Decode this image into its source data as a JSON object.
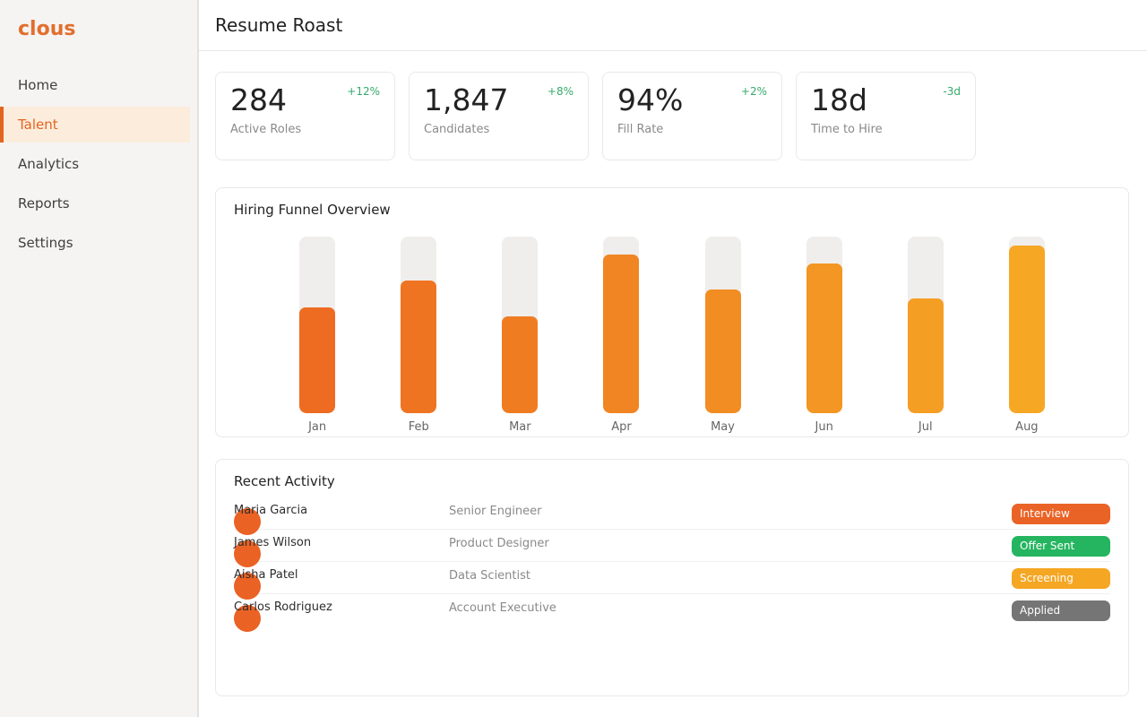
{
  "brand": {
    "logo_text": "clous",
    "accent_color": "#e2651f",
    "logo_color": "#e26e2e"
  },
  "sidebar": {
    "items": [
      {
        "label": "Home",
        "active": false
      },
      {
        "label": "Talent",
        "active": true
      },
      {
        "label": "Analytics",
        "active": false
      },
      {
        "label": "Reports",
        "active": false
      },
      {
        "label": "Settings",
        "active": false
      }
    ]
  },
  "header": {
    "title": "Resume Roast"
  },
  "stats": {
    "delta_color": "#35aa6b",
    "cards": [
      {
        "value": "284",
        "delta": "+12%",
        "label": "Active Roles"
      },
      {
        "value": "1,847",
        "delta": "+8%",
        "label": "Candidates"
      },
      {
        "value": "94%",
        "delta": "+2%",
        "label": "Fill Rate"
      },
      {
        "value": "18d",
        "delta": "-3d",
        "label": "Time to Hire"
      }
    ]
  },
  "chart_data": {
    "type": "bar",
    "title": "Hiring Funnel Overview",
    "categories": [
      "Jan",
      "Feb",
      "Mar",
      "Apr",
      "May",
      "Jun",
      "Jul",
      "Aug"
    ],
    "values": [
      60,
      75,
      55,
      90,
      70,
      85,
      65,
      95
    ],
    "value_unit": "percent of track height (no axis shown)",
    "ylim": [
      0,
      100
    ],
    "grid": false,
    "legend": "none",
    "track_color": "#f0eeec",
    "bar_colors": [
      "#ee6b22",
      "#ef7422",
      "#f07c22",
      "#f18523",
      "#f28d23",
      "#f39623",
      "#f59e24",
      "#f6a724"
    ]
  },
  "activity": {
    "title": "Recent Activity",
    "avatar_color": "#ea6224",
    "rows": [
      {
        "name": "Maria Garcia",
        "role": "Senior Engineer",
        "status": "Interview",
        "status_color": "#ea6326"
      },
      {
        "name": "James Wilson",
        "role": "Product Designer",
        "status": "Offer Sent",
        "status_color": "#25b560"
      },
      {
        "name": "Aisha Patel",
        "role": "Data Scientist",
        "status": "Screening",
        "status_color": "#f5a623"
      },
      {
        "name": "Carlos Rodriguez",
        "role": "Account Executive",
        "status": "Applied",
        "status_color": "#757575"
      }
    ]
  }
}
